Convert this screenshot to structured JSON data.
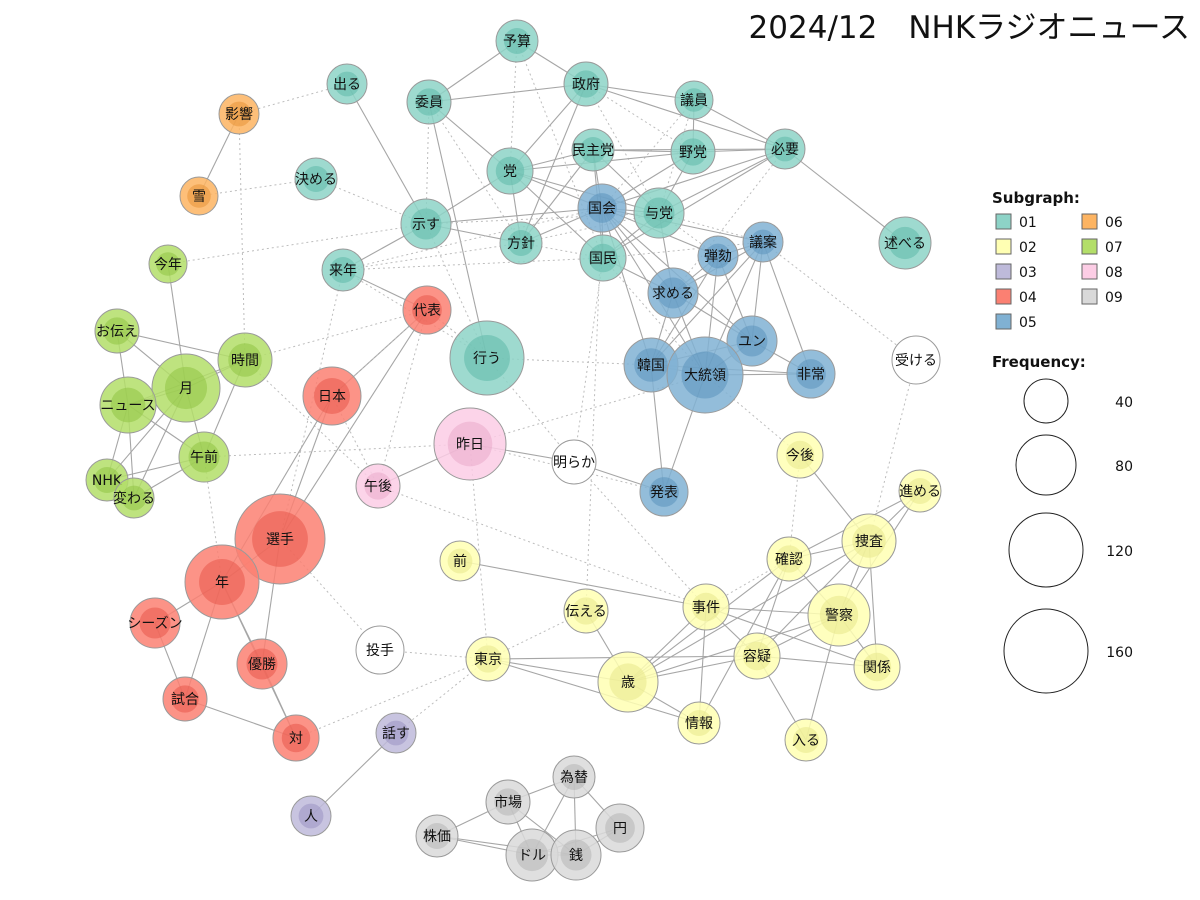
{
  "title": "2024/12　NHKラジオニュース",
  "legend": {
    "subgraph_title": "Subgraph:",
    "frequency_title": "Frequency:",
    "subgraphs": [
      {
        "id": "01",
        "color": "#8DD3C7"
      },
      {
        "id": "02",
        "color": "#FFFFB3"
      },
      {
        "id": "03",
        "color": "#BEBADA"
      },
      {
        "id": "04",
        "color": "#FB8072"
      },
      {
        "id": "05",
        "color": "#80B1D3"
      },
      {
        "id": "06",
        "color": "#FDB462"
      },
      {
        "id": "07",
        "color": "#B3DE69"
      },
      {
        "id": "08",
        "color": "#FCCDE5"
      },
      {
        "id": "09",
        "color": "#D9D9D9"
      }
    ],
    "frequencies": [
      "40",
      "80",
      "120",
      "160"
    ]
  },
  "nodes": [
    {
      "label": "予算",
      "group": "01"
    },
    {
      "label": "出る",
      "group": "01"
    },
    {
      "label": "政府",
      "group": "01"
    },
    {
      "label": "委員",
      "group": "01"
    },
    {
      "label": "議員",
      "group": "01"
    },
    {
      "label": "民主党",
      "group": "01"
    },
    {
      "label": "野党",
      "group": "01"
    },
    {
      "label": "必要",
      "group": "01"
    },
    {
      "label": "決める",
      "group": "01"
    },
    {
      "label": "党",
      "group": "01"
    },
    {
      "label": "示す",
      "group": "01"
    },
    {
      "label": "与党",
      "group": "01"
    },
    {
      "label": "方針",
      "group": "01"
    },
    {
      "label": "国民",
      "group": "01"
    },
    {
      "label": "来年",
      "group": "01"
    },
    {
      "label": "述べる",
      "group": "01"
    },
    {
      "label": "行う",
      "group": "01"
    },
    {
      "label": "影響",
      "group": "06"
    },
    {
      "label": "雪",
      "group": "06"
    },
    {
      "label": "今年",
      "group": "07"
    },
    {
      "label": "お伝え",
      "group": "07"
    },
    {
      "label": "時間",
      "group": "07"
    },
    {
      "label": "月",
      "group": "07"
    },
    {
      "label": "ニュース",
      "group": "07"
    },
    {
      "label": "午前",
      "group": "07"
    },
    {
      "label": "NHK",
      "group": "07"
    },
    {
      "label": "変わる",
      "group": "07"
    },
    {
      "label": "国会",
      "group": "05"
    },
    {
      "label": "議案",
      "group": "05"
    },
    {
      "label": "弾劾",
      "group": "05"
    },
    {
      "label": "求める",
      "group": "05"
    },
    {
      "label": "ユン",
      "group": "05"
    },
    {
      "label": "韓国",
      "group": "05"
    },
    {
      "label": "大統領",
      "group": "05"
    },
    {
      "label": "非常",
      "group": "05"
    },
    {
      "label": "発表",
      "group": "05"
    },
    {
      "label": "代表",
      "group": "04"
    },
    {
      "label": "日本",
      "group": "04"
    },
    {
      "label": "選手",
      "group": "04"
    },
    {
      "label": "年",
      "group": "04"
    },
    {
      "label": "シーズン",
      "group": "04"
    },
    {
      "label": "優勝",
      "group": "04"
    },
    {
      "label": "試合",
      "group": "04"
    },
    {
      "label": "対",
      "group": "04"
    },
    {
      "label": "昨日",
      "group": "08"
    },
    {
      "label": "午後",
      "group": "08"
    },
    {
      "label": "明らか",
      "group": "09"
    },
    {
      "label": "受ける",
      "group": "09"
    },
    {
      "label": "投手",
      "group": "09"
    },
    {
      "label": "今後",
      "group": "02"
    },
    {
      "label": "進める",
      "group": "02"
    },
    {
      "label": "捜査",
      "group": "02"
    },
    {
      "label": "確認",
      "group": "02"
    },
    {
      "label": "前",
      "group": "02"
    },
    {
      "label": "事件",
      "group": "02"
    },
    {
      "label": "警察",
      "group": "02"
    },
    {
      "label": "伝える",
      "group": "02"
    },
    {
      "label": "容疑",
      "group": "02"
    },
    {
      "label": "東京",
      "group": "02"
    },
    {
      "label": "歳",
      "group": "02"
    },
    {
      "label": "関係",
      "group": "02"
    },
    {
      "label": "情報",
      "group": "02"
    },
    {
      "label": "入る",
      "group": "02"
    },
    {
      "label": "話す",
      "group": "03"
    },
    {
      "label": "人",
      "group": "03"
    },
    {
      "label": "為替",
      "group": "09"
    },
    {
      "label": "市場",
      "group": "09"
    },
    {
      "label": "円",
      "group": "09"
    },
    {
      "label": "株価",
      "group": "09"
    },
    {
      "label": "ドル",
      "group": "09"
    },
    {
      "label": "銭",
      "group": "09"
    }
  ]
}
